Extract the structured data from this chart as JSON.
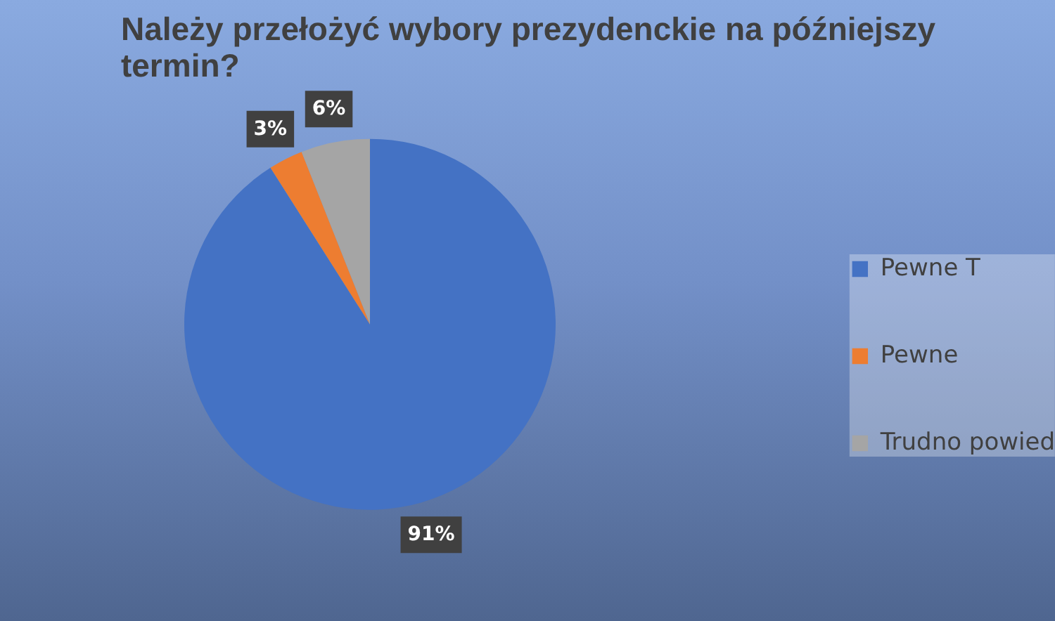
{
  "chart_data": {
    "type": "pie",
    "title": "Należy przełożyć wybory prezydenckie na późniejszy termin?",
    "categories": [
      "Pewne T",
      "Pewne",
      "Trudno powied"
    ],
    "values": [
      91,
      3,
      6
    ],
    "colors": [
      "#4472c4",
      "#ed7d31",
      "#a5a5a5"
    ],
    "value_labels": [
      "91%",
      "3%",
      "6%"
    ],
    "legend": "right"
  }
}
